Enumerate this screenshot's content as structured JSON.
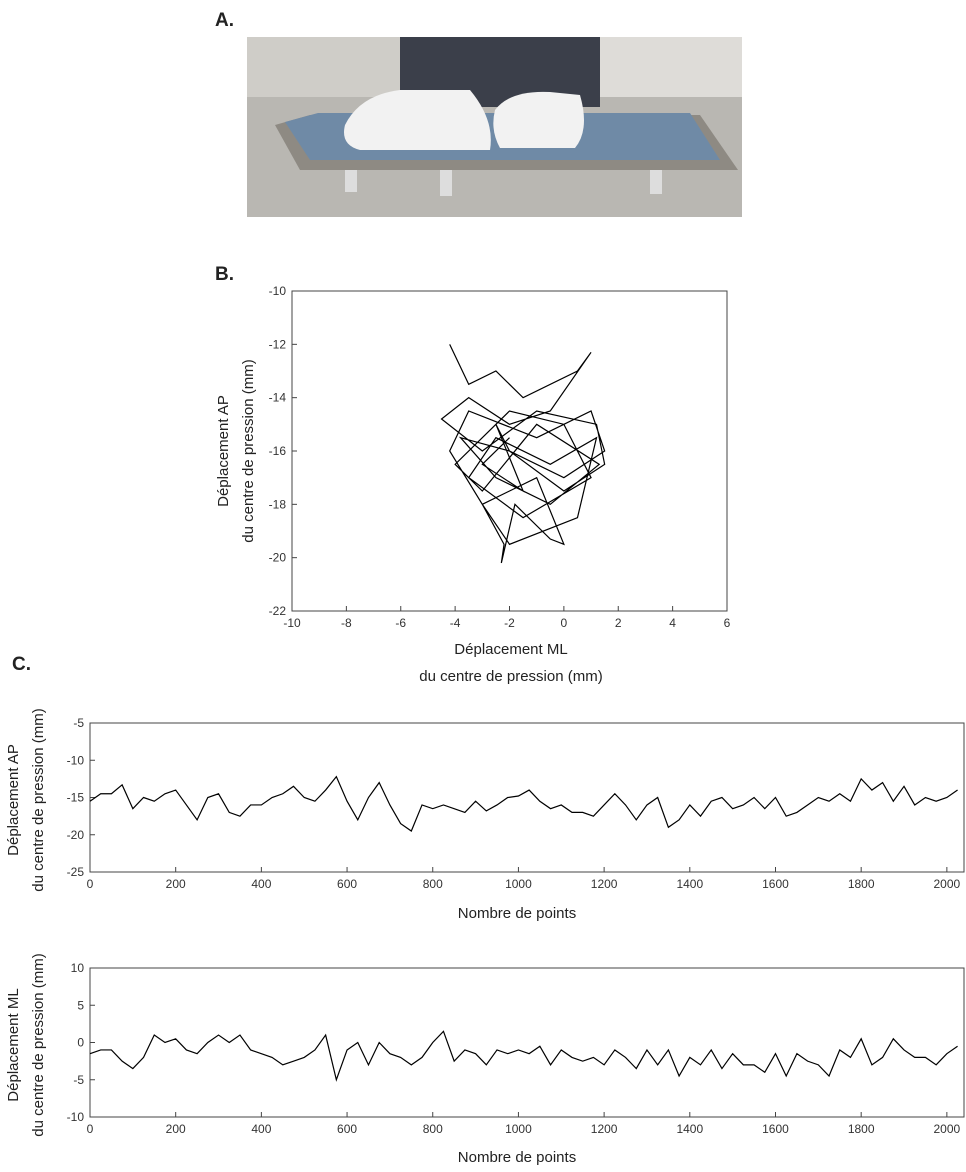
{
  "panels": [
    "A.",
    "B.",
    "C."
  ],
  "chart_data": [
    {
      "type": "line",
      "xlabel": [
        "Déplacement ML",
        "du centre de pression (mm)"
      ],
      "ylabel": [
        "Déplacement AP",
        "du centre de pression (mm)"
      ],
      "xlim": [
        -10,
        6
      ],
      "xticks": [
        -10,
        -8,
        -6,
        -4,
        -2,
        0,
        2,
        4,
        6
      ],
      "ylim": [
        -22,
        -10
      ],
      "yticks": [
        -22,
        -20,
        -18,
        -16,
        -14,
        -12,
        -10
      ],
      "x": [
        -4.2,
        -3.5,
        -2.5,
        -1.5,
        0.5,
        1,
        -0.5,
        -2,
        -3.5,
        -4.5,
        -3,
        -1,
        1.2,
        1.5,
        0,
        -2,
        -3.8,
        -2.5,
        -0.5,
        1.3,
        -1,
        -3,
        -4,
        -2,
        0,
        1,
        -1.5,
        -3.5,
        -2.5,
        -0.5,
        1.2,
        0.5,
        -2,
        -3,
        -2.2,
        -2.3,
        -1.8,
        -0.5,
        0,
        -1,
        -3,
        -4.2,
        -3.5,
        -1,
        1,
        1.5,
        0,
        -2,
        -2.5,
        -1.5,
        -3,
        -2
      ],
      "series": [
        {
          "color": "#000000",
          "values": [
            -12,
            -13.5,
            -13,
            -14,
            -13,
            -12.3,
            -14.5,
            -15,
            -14,
            -14.8,
            -16,
            -14.5,
            -15,
            -16.5,
            -17.5,
            -16,
            -15.5,
            -17,
            -18,
            -16.5,
            -15,
            -17.5,
            -16.5,
            -14.5,
            -15,
            -17,
            -18.5,
            -17,
            -15.5,
            -16.5,
            -15.5,
            -18.5,
            -19.5,
            -18,
            -19.5,
            -20.2,
            -18,
            -19.3,
            -19.5,
            -17,
            -18,
            -16,
            -14.5,
            -15.5,
            -14.5,
            -16,
            -17,
            -16,
            -15,
            -17.5,
            -16.5,
            -15.5
          ]
        }
      ]
    },
    {
      "type": "line",
      "xlabel": [
        "Nombre de points"
      ],
      "ylabel": [
        "Déplacement AP",
        "du centre de pression (mm)"
      ],
      "xlim": [
        0,
        2040
      ],
      "xticks": [
        0,
        200,
        400,
        600,
        800,
        1000,
        1200,
        1400,
        1600,
        1800,
        2000
      ],
      "ylim": [
        -25,
        -5
      ],
      "yticks": [
        -25,
        -20,
        -15,
        -10,
        -5
      ],
      "x": [
        0,
        25,
        50,
        75,
        100,
        125,
        150,
        175,
        200,
        225,
        250,
        275,
        300,
        325,
        350,
        375,
        400,
        425,
        450,
        475,
        500,
        525,
        550,
        575,
        600,
        625,
        650,
        675,
        700,
        725,
        750,
        775,
        800,
        825,
        850,
        875,
        900,
        925,
        950,
        975,
        1000,
        1025,
        1050,
        1075,
        1100,
        1125,
        1150,
        1175,
        1200,
        1225,
        1250,
        1275,
        1300,
        1325,
        1350,
        1375,
        1400,
        1425,
        1450,
        1475,
        1500,
        1525,
        1550,
        1575,
        1600,
        1625,
        1650,
        1675,
        1700,
        1725,
        1750,
        1775,
        1800,
        1825,
        1850,
        1875,
        1900,
        1925,
        1950,
        1975,
        2000,
        2025
      ],
      "series": [
        {
          "color": "#000000",
          "values": [
            -15.5,
            -14.5,
            -14.5,
            -13.3,
            -16.5,
            -15,
            -15.5,
            -14.5,
            -14,
            -16,
            -18,
            -15,
            -14.5,
            -17,
            -17.5,
            -16,
            -16,
            -15,
            -14.5,
            -13.5,
            -15,
            -15.5,
            -14,
            -12.2,
            -15.5,
            -18,
            -15,
            -13,
            -16,
            -18.5,
            -19.5,
            -16,
            -16.5,
            -16,
            -16.5,
            -17,
            -15.5,
            -16.8,
            -16,
            -15,
            -14.8,
            -14,
            -15.5,
            -16.5,
            -16,
            -17,
            -17,
            -17.5,
            -16,
            -14.5,
            -16,
            -18,
            -16,
            -15,
            -19,
            -18,
            -16,
            -17.5,
            -15.5,
            -15,
            -16.5,
            -16,
            -15,
            -16.5,
            -15,
            -17.5,
            -17,
            -16,
            -15,
            -15.5,
            -14.5,
            -15.5,
            -12.5,
            -14,
            -13,
            -15.5,
            -13.5,
            -16,
            -15,
            -15.5,
            -15,
            -14
          ]
        }
      ]
    },
    {
      "type": "line",
      "xlabel": [
        "Nombre de points"
      ],
      "ylabel": [
        "Déplacement ML",
        "du centre de pression (mm)"
      ],
      "xlim": [
        0,
        2040
      ],
      "xticks": [
        0,
        200,
        400,
        600,
        800,
        1000,
        1200,
        1400,
        1600,
        1800,
        2000
      ],
      "ylim": [
        -10,
        10
      ],
      "yticks": [
        -10,
        -5,
        0,
        5,
        10
      ],
      "x": [
        0,
        25,
        50,
        75,
        100,
        125,
        150,
        175,
        200,
        225,
        250,
        275,
        300,
        325,
        350,
        375,
        400,
        425,
        450,
        475,
        500,
        525,
        550,
        575,
        600,
        625,
        650,
        675,
        700,
        725,
        750,
        775,
        800,
        825,
        850,
        875,
        900,
        925,
        950,
        975,
        1000,
        1025,
        1050,
        1075,
        1100,
        1125,
        1150,
        1175,
        1200,
        1225,
        1250,
        1275,
        1300,
        1325,
        1350,
        1375,
        1400,
        1425,
        1450,
        1475,
        1500,
        1525,
        1550,
        1575,
        1600,
        1625,
        1650,
        1675,
        1700,
        1725,
        1750,
        1775,
        1800,
        1825,
        1850,
        1875,
        1900,
        1925,
        1950,
        1975,
        2000,
        2025
      ],
      "series": [
        {
          "color": "#000000",
          "values": [
            -1.5,
            -1,
            -1,
            -2.5,
            -3.5,
            -2,
            1,
            0,
            0.5,
            -1,
            -1.5,
            0,
            1,
            0,
            1,
            -1,
            -1.5,
            -2,
            -3,
            -2.5,
            -2,
            -1,
            1,
            -5,
            -1,
            0,
            -3,
            0,
            -1.5,
            -2,
            -3,
            -2,
            0,
            1.5,
            -2.5,
            -1,
            -1.5,
            -3,
            -1,
            -1.5,
            -1,
            -1.5,
            -0.5,
            -3,
            -1,
            -2,
            -2.5,
            -2,
            -3,
            -1,
            -2,
            -3.5,
            -1,
            -3,
            -1,
            -4.5,
            -2,
            -3,
            -1,
            -3.5,
            -1.5,
            -3,
            -3,
            -4,
            -1.5,
            -4.5,
            -1.5,
            -2.5,
            -3,
            -4.5,
            -1,
            -2,
            0.5,
            -3,
            -2,
            0.5,
            -1,
            -2,
            -2,
            -3,
            -1.5,
            -0.5
          ]
        }
      ]
    }
  ]
}
